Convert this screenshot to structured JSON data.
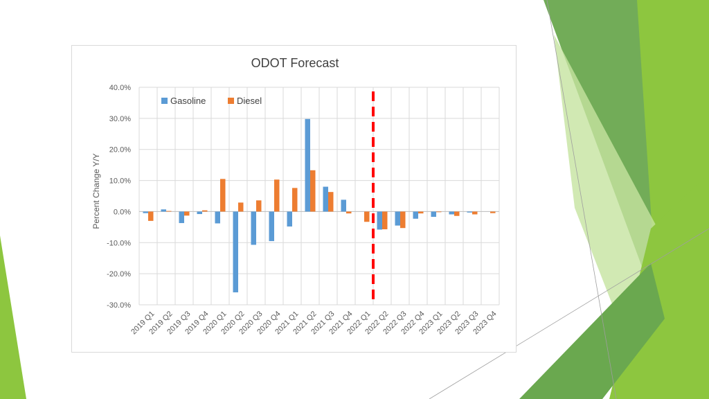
{
  "colors": {
    "gasoline": "#5b9bd5",
    "diesel": "#ed7d31",
    "forecast_line": "#ff0000",
    "grid": "#d9d9d9",
    "accent_green_light": "#8dc63f",
    "accent_green_dark": "#5b8f2e"
  },
  "chart_data": {
    "type": "bar",
    "title": "ODOT Forecast",
    "xlabel": "",
    "ylabel": "Percent Change Y/Y",
    "ylim": [
      -30,
      40
    ],
    "yticks": [
      "40.0%",
      "30.0%",
      "20.0%",
      "10.0%",
      "0.0%",
      "-10.0%",
      "-20.0%",
      "-30.0%"
    ],
    "categories": [
      "2019 Q1",
      "2019 Q2",
      "2019 Q3",
      "2019 Q4",
      "2020 Q1",
      "2020 Q2",
      "2020 Q3",
      "2020 Q4",
      "2021 Q1",
      "2021 Q2",
      "2021 Q3",
      "2021 Q4",
      "2022 Q1",
      "2022 Q2",
      "2022 Q3",
      "2022 Q4",
      "2023 Q1",
      "2023 Q2",
      "2023 Q3",
      "2023 Q4"
    ],
    "series": [
      {
        "name": "Gasoline",
        "color": "#5b9bd5",
        "values": [
          -0.5,
          0.7,
          -3.7,
          -0.8,
          -3.8,
          -26.0,
          -10.7,
          -9.5,
          -4.8,
          29.8,
          8.0,
          3.8,
          0.0,
          -5.8,
          -4.5,
          -2.3,
          -1.7,
          -0.9,
          -0.3,
          0.0
        ]
      },
      {
        "name": "Diesel",
        "color": "#ed7d31",
        "values": [
          -3.0,
          0.2,
          -1.3,
          0.4,
          10.5,
          2.9,
          3.6,
          10.3,
          7.6,
          13.3,
          6.3,
          -0.6,
          -3.3,
          -5.7,
          -5.3,
          -0.6,
          -0.2,
          -1.4,
          -0.9,
          -0.5
        ]
      }
    ],
    "forecast_divider_after": "2022 Q1",
    "grid": true,
    "legend_position": "top-left"
  }
}
